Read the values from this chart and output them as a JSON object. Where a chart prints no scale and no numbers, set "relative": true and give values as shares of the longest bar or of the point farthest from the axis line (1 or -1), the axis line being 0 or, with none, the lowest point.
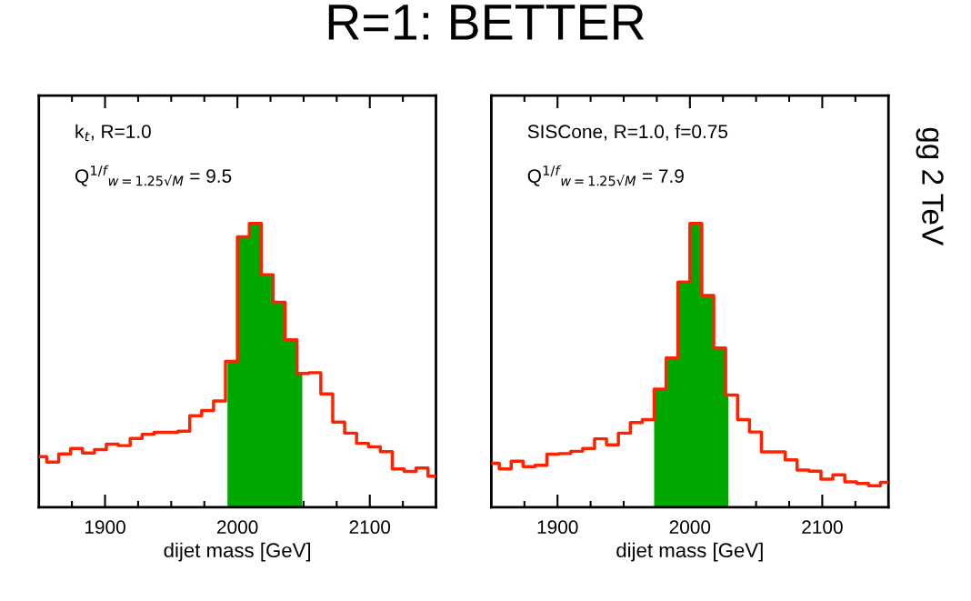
{
  "chart_data": [
    {
      "type": "step",
      "title": "R=1: BETTER",
      "xlabel": "dijet mass [GeV]",
      "relative": true,
      "tick_labels": "x",
      "xlim": [
        1850,
        2150
      ],
      "xticks": [
        {
          "value": 1875,
          "label": null
        },
        1900,
        {
          "value": 1925,
          "label": null
        },
        {
          "value": 1950,
          "label": null
        },
        {
          "value": 1975,
          "label": null
        },
        2000,
        {
          "value": 2025,
          "label": null
        },
        {
          "value": 2050,
          "label": null
        },
        {
          "value": 2075,
          "label": null
        },
        2100,
        {
          "value": 2125,
          "label": null
        }
      ],
      "annotations": [
        "k$_{t}$, R=1.0",
        "Q$^{1/f}$$_{w=1.25√M}$ = 9.5"
      ],
      "x": [
        1850,
        1856,
        1865,
        1874,
        1883,
        1892,
        1901,
        1910,
        1919,
        1928,
        1937,
        1946,
        1955,
        1964,
        1973,
        1982,
        1991,
        2000,
        2009,
        2018,
        2027,
        2036,
        2045,
        2054,
        2063,
        2072,
        2081,
        2090,
        2099,
        2108,
        2117,
        2126,
        2135,
        2144,
        2150
      ],
      "series": [
        {
          "color": "#ff2200",
          "values": [
            0.178,
            0.159,
            0.188,
            0.207,
            0.191,
            0.203,
            0.222,
            0.217,
            0.242,
            0.257,
            0.264,
            0.264,
            0.268,
            0.322,
            0.341,
            0.374,
            0.514,
            0.952,
            1.0,
            0.819,
            0.722,
            0.59,
            0.471,
            0.474,
            0.399,
            0.3,
            0.261,
            0.225,
            0.213,
            0.196,
            0.135,
            0.126,
            0.138,
            0.109,
            0.109
          ]
        },
        {
          "type": "area",
          "color": "#00a800",
          "x": [
            1992.5,
            2000,
            2009,
            2018,
            2027,
            2036,
            2045,
            2049
          ],
          "values": [
            0.514,
            0.952,
            1.0,
            0.819,
            0.722,
            0.59,
            0.471,
            0.471
          ]
        }
      ]
    },
    {
      "type": "step",
      "xlabel": "dijet mass [GeV]",
      "relative": true,
      "tick_labels": "x",
      "xlim": [
        1850,
        2150
      ],
      "xticks": [
        {
          "value": 1875,
          "label": null
        },
        1900,
        {
          "value": 1925,
          "label": null
        },
        {
          "value": 1950,
          "label": null
        },
        {
          "value": 1975,
          "label": null
        },
        2000,
        {
          "value": 2025,
          "label": null
        },
        {
          "value": 2050,
          "label": null
        },
        {
          "value": 2075,
          "label": null
        },
        2100,
        {
          "value": 2125,
          "label": null
        }
      ],
      "annotations": [
        "SISCone, R=1.0, f=0.75",
        "Q$^{1/f}$$_{w=1.25√M}$ = 7.9",
        "gg 2 TeV"
      ],
      "x": [
        1850,
        1856,
        1865,
        1874,
        1883,
        1892,
        1901,
        1910,
        1919,
        1928,
        1937,
        1946,
        1955,
        1964,
        1973,
        1982,
        1991,
        2000,
        2009,
        2018,
        2027,
        2036,
        2045,
        2054,
        2063,
        2072,
        2081,
        2090,
        2099,
        2108,
        2117,
        2126,
        2135,
        2144,
        2150
      ],
      "series": [
        {
          "color": "#ff2200",
          "values": [
            0.155,
            0.135,
            0.162,
            0.143,
            0.148,
            0.187,
            0.189,
            0.197,
            0.207,
            0.241,
            0.22,
            0.261,
            0.298,
            0.309,
            0.416,
            0.526,
            0.793,
            1.0,
            0.746,
            0.561,
            0.395,
            0.309,
            0.265,
            0.195,
            0.195,
            0.167,
            0.131,
            0.127,
            0.099,
            0.114,
            0.089,
            0.084,
            0.076,
            0.088,
            0.088
          ]
        },
        {
          "type": "area",
          "color": "#00a800",
          "x": [
            1973,
            1982,
            1991,
            2000,
            2009,
            2018,
            2027,
            2029
          ],
          "values": [
            0.416,
            0.526,
            0.793,
            1.0,
            0.746,
            0.561,
            0.395,
            0.395
          ]
        }
      ]
    }
  ]
}
